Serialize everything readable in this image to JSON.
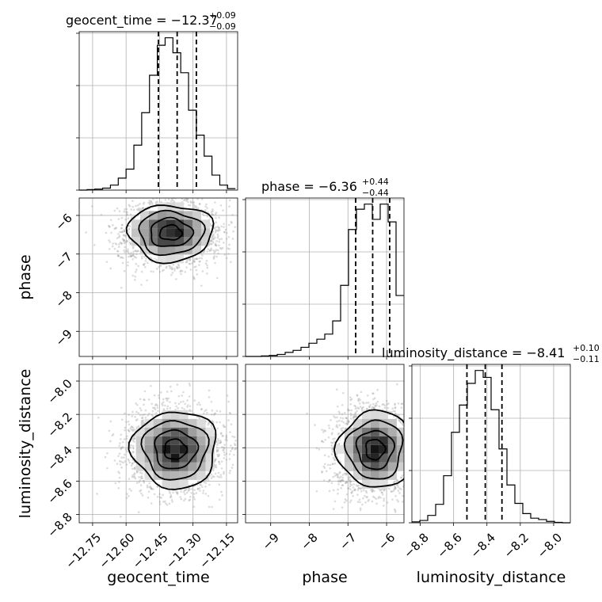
{
  "chart_data": {
    "type": "corner",
    "parameters": [
      {
        "name": "geocent_time",
        "median": "−12.37",
        "plus": "+0.09",
        "minus": "−0.09",
        "range": [
          -12.81,
          -12.1
        ],
        "ticks": [
          -12.75,
          -12.6,
          -12.45,
          -12.3,
          -12.15
        ],
        "tick_labels": [
          "−12.75",
          "−12.60",
          "−12.45",
          "−12.30",
          "−12.15"
        ],
        "quantiles": [
          -12.455,
          -12.371,
          -12.285
        ]
      },
      {
        "name": "phase",
        "median": "−6.36",
        "plus": "+0.44",
        "minus": "−0.44",
        "range": [
          -9.65,
          -5.55
        ],
        "ticks": [
          -9,
          -8,
          -7,
          -6
        ],
        "tick_labels": [
          "−9",
          "−8",
          "−7",
          "−6"
        ],
        "quantiles": [
          -6.8,
          -6.36,
          -5.92
        ]
      },
      {
        "name": "luminosity_distance",
        "median": "−8.41",
        "plus": "+0.10",
        "minus": "−0.11",
        "range": [
          -8.85,
          -7.9
        ],
        "ticks": [
          -8.8,
          -8.6,
          -8.4,
          -8.2,
          -8.0
        ],
        "tick_labels": [
          "−8.8",
          "−8.6",
          "−8.4",
          "−8.2",
          "−8.0"
        ],
        "quantiles": [
          -8.52,
          -8.41,
          -8.31
        ]
      }
    ],
    "histograms": [
      {
        "param": "geocent_time",
        "edges": [
          -12.81,
          -12.775,
          -12.74,
          -12.705,
          -12.67,
          -12.635,
          -12.6,
          -12.565,
          -12.53,
          -12.495,
          -12.46,
          -12.425,
          -12.39,
          -12.355,
          -12.32,
          -12.285,
          -12.25,
          -12.215,
          -12.18,
          -12.145,
          -12.11
        ],
        "counts": [
          0,
          1,
          2,
          4,
          10,
          24,
          42,
          90,
          155,
          230,
          290,
          305,
          275,
          235,
          160,
          110,
          68,
          30,
          10,
          3
        ]
      },
      {
        "param": "phase",
        "edges": [
          -9.65,
          -9.445,
          -9.24,
          -9.035,
          -8.83,
          -8.625,
          -8.42,
          -8.215,
          -8.01,
          -7.805,
          -7.6,
          -7.395,
          -7.19,
          -6.985,
          -6.78,
          -6.575,
          -6.37,
          -6.165,
          -5.96,
          -5.755,
          -5.55
        ],
        "counts": [
          0,
          0,
          1,
          2,
          4,
          8,
          12,
          18,
          26,
          34,
          44,
          70,
          140,
          250,
          290,
          300,
          270,
          300,
          265,
          120
        ]
      },
      {
        "param": "luminosity_distance",
        "edges": [
          -8.85,
          -8.8025,
          -8.755,
          -8.7075,
          -8.66,
          -8.6125,
          -8.565,
          -8.5175,
          -8.47,
          -8.4225,
          -8.375,
          -8.3275,
          -8.28,
          -8.2325,
          -8.185,
          -8.1375,
          -8.09,
          -8.0425,
          -7.995,
          -7.9475,
          -7.9
        ],
        "counts": [
          2,
          5,
          16,
          40,
          102,
          196,
          255,
          302,
          330,
          315,
          245,
          160,
          82,
          42,
          20,
          10,
          7,
          3,
          1,
          0
        ]
      }
    ],
    "pairs": [
      {
        "x": "geocent_time",
        "y": "phase",
        "center": [
          -12.4,
          -6.45
        ],
        "spread": [
          0.09,
          0.35
        ]
      },
      {
        "x": "geocent_time",
        "y": "luminosity_distance",
        "center": [
          -12.38,
          -8.41
        ],
        "spread": [
          0.09,
          0.11
        ]
      },
      {
        "x": "phase",
        "y": "luminosity_distance",
        "center": [
          -6.3,
          -8.41
        ],
        "spread": [
          0.45,
          0.11
        ]
      }
    ],
    "axis_labels": {
      "x": [
        "geocent_time",
        "phase",
        "luminosity_distance"
      ],
      "y": [
        "phase",
        "luminosity_distance"
      ]
    }
  }
}
